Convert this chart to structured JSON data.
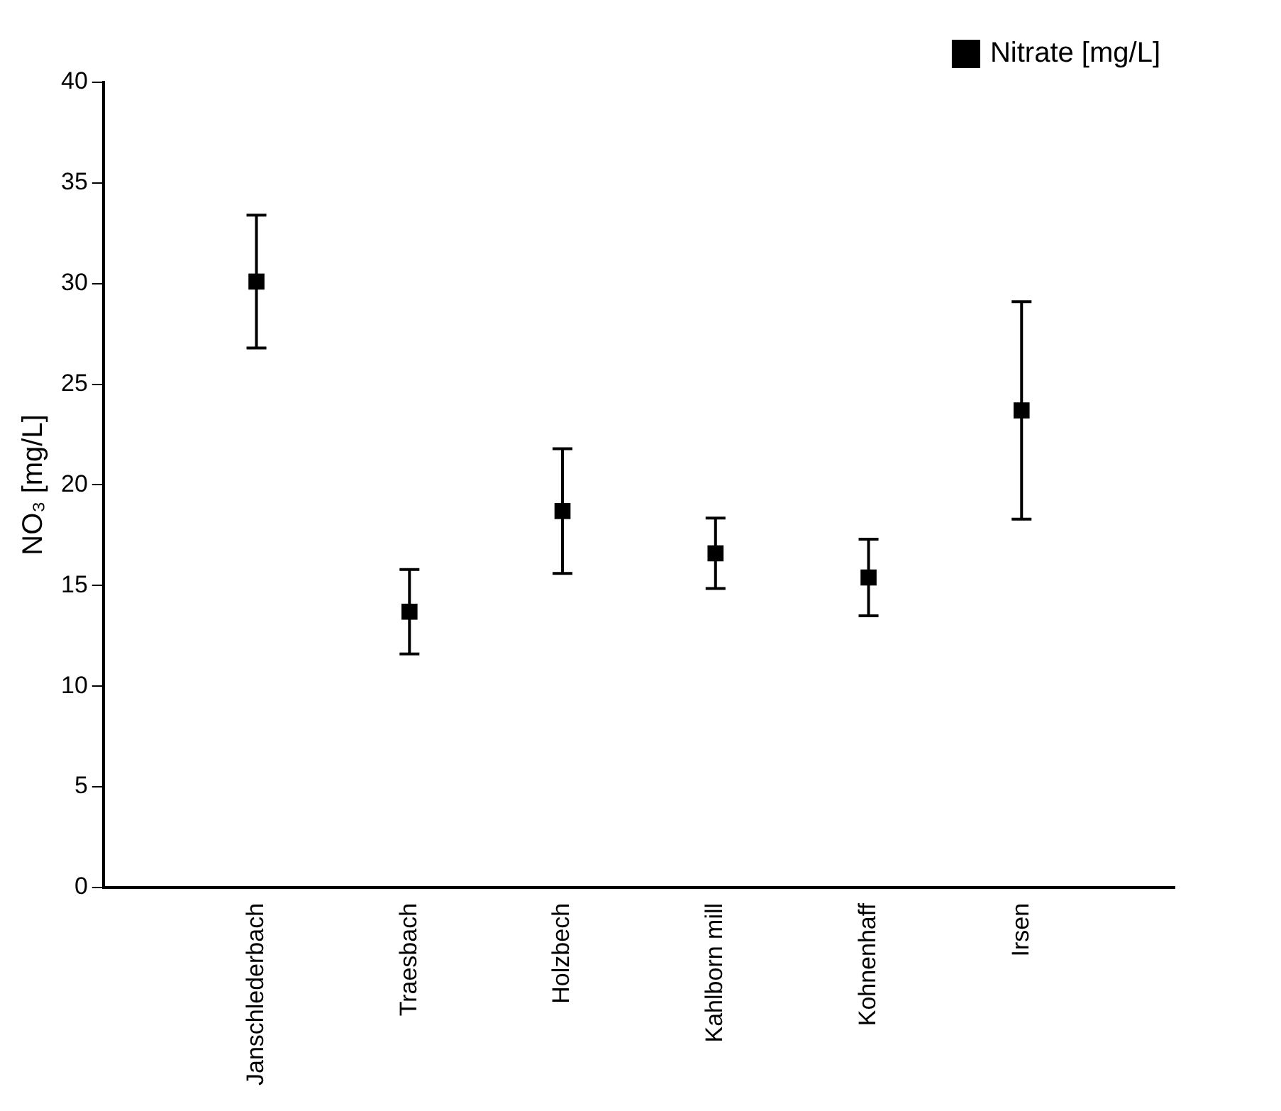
{
  "chart_data": {
    "type": "scatter",
    "ylabel": "NO₃ [mg/L]",
    "categories": [
      "Janschlederbach",
      "Traesbach",
      "Holzbech",
      "Kahlborn mill",
      "Kohnenhaff",
      "Irsen"
    ],
    "series": [
      {
        "name": "Nitrate [mg/L]",
        "color": "#000000",
        "values": [
          30.1,
          13.7,
          18.7,
          16.6,
          15.4,
          23.7
        ],
        "errors": [
          3.3,
          2.1,
          3.1,
          1.75,
          1.9,
          5.4
        ]
      }
    ],
    "ylim": [
      0,
      40
    ],
    "yticks": [
      0,
      5,
      10,
      15,
      20,
      25,
      30,
      35,
      40
    ],
    "grid": false,
    "legend": "top right",
    "marker": "square"
  }
}
